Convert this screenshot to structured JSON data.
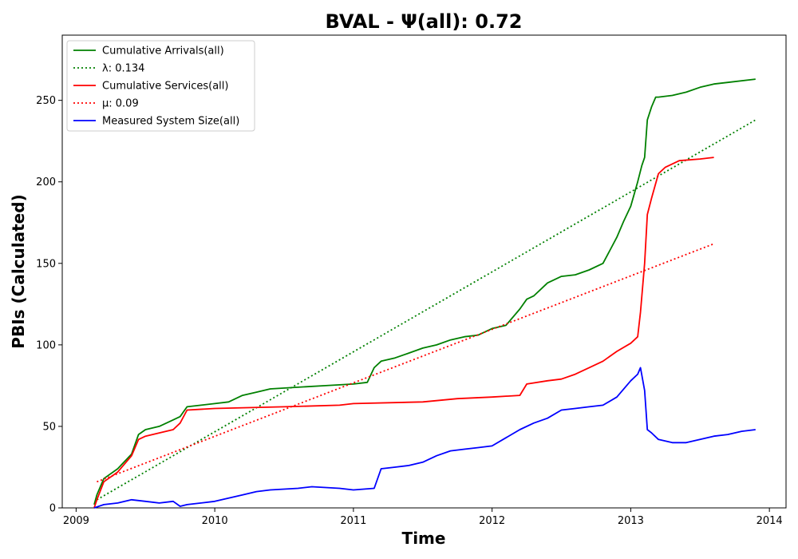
{
  "chart_data": {
    "type": "line",
    "title": "BVAL -  Ψ(all): 0.72",
    "xlabel": "Time",
    "ylabel": "PBIs (Calculated)",
    "xlim": [
      2008.9,
      2014.12
    ],
    "ylim": [
      0,
      290
    ],
    "x_ticks": [
      2009,
      2010,
      2011,
      2012,
      2013,
      2014
    ],
    "y_ticks": [
      0,
      50,
      100,
      150,
      200,
      250
    ],
    "grid": false,
    "legend_position": "top-left",
    "series": [
      {
        "name": "Cumulative Arrivals(all)",
        "color": "#008000",
        "style": "solid",
        "x": [
          2009.13,
          2009.15,
          2009.2,
          2009.3,
          2009.4,
          2009.45,
          2009.5,
          2009.6,
          2009.7,
          2009.75,
          2009.8,
          2009.9,
          2010.0,
          2010.1,
          2010.2,
          2010.3,
          2010.4,
          2010.6,
          2010.8,
          2011.0,
          2011.1,
          2011.15,
          2011.2,
          2011.3,
          2011.4,
          2011.5,
          2011.6,
          2011.7,
          2011.8,
          2011.9,
          2012.0,
          2012.1,
          2012.2,
          2012.25,
          2012.3,
          2012.4,
          2012.5,
          2012.6,
          2012.7,
          2012.8,
          2012.85,
          2012.9,
          2012.95,
          2013.0,
          2013.05,
          2013.08,
          2013.1,
          2013.12,
          2013.15,
          2013.18,
          2013.2,
          2013.3,
          2013.4,
          2013.5,
          2013.6,
          2013.7,
          2013.9
        ],
        "y": [
          2,
          8,
          18,
          24,
          33,
          45,
          48,
          50,
          54,
          56,
          62,
          63,
          64,
          65,
          69,
          71,
          73,
          74,
          75,
          76,
          77,
          86,
          90,
          92,
          95,
          98,
          100,
          103,
          105,
          106,
          110,
          112,
          122,
          128,
          130,
          138,
          142,
          143,
          146,
          150,
          158,
          166,
          176,
          185,
          200,
          210,
          215,
          238,
          246,
          252,
          252,
          253,
          255,
          258,
          260,
          261,
          263
        ]
      },
      {
        "name": "λ: 0.134",
        "color": "#008000",
        "style": "dotted",
        "x": [
          2009.15,
          2013.9
        ],
        "y": [
          5,
          238
        ]
      },
      {
        "name": "Cumulative Services(all)",
        "color": "#ff0000",
        "style": "solid",
        "x": [
          2009.13,
          2009.15,
          2009.2,
          2009.3,
          2009.4,
          2009.45,
          2009.5,
          2009.6,
          2009.7,
          2009.75,
          2009.8,
          2010.0,
          2010.5,
          2010.9,
          2011.0,
          2011.5,
          2011.75,
          2012.0,
          2012.2,
          2012.25,
          2012.4,
          2012.5,
          2012.6,
          2012.7,
          2012.8,
          2012.9,
          2013.0,
          2013.05,
          2013.07,
          2013.1,
          2013.12,
          2013.15,
          2013.2,
          2013.25,
          2013.3,
          2013.35,
          2013.5,
          2013.6
        ],
        "y": [
          0,
          5,
          16,
          22,
          32,
          42,
          44,
          46,
          48,
          52,
          60,
          61,
          62,
          63,
          64,
          65,
          67,
          68,
          69,
          76,
          78,
          79,
          82,
          86,
          90,
          96,
          101,
          105,
          120,
          150,
          180,
          190,
          205,
          209,
          211,
          213,
          214,
          215
        ]
      },
      {
        "name": "μ: 0.09",
        "color": "#ff0000",
        "style": "dotted",
        "x": [
          2009.15,
          2013.6
        ],
        "y": [
          16,
          162
        ]
      },
      {
        "name": "Measured System Size(all)",
        "color": "#0000ff",
        "style": "solid",
        "x": [
          2009.13,
          2009.2,
          2009.3,
          2009.4,
          2009.5,
          2009.6,
          2009.7,
          2009.75,
          2009.8,
          2009.9,
          2010.0,
          2010.1,
          2010.2,
          2010.3,
          2010.4,
          2010.6,
          2010.7,
          2010.9,
          2011.0,
          2011.15,
          2011.2,
          2011.3,
          2011.4,
          2011.5,
          2011.6,
          2011.7,
          2011.8,
          2011.9,
          2012.0,
          2012.1,
          2012.2,
          2012.3,
          2012.4,
          2012.5,
          2012.6,
          2012.7,
          2012.8,
          2012.9,
          2013.0,
          2013.05,
          2013.07,
          2013.1,
          2013.12,
          2013.15,
          2013.2,
          2013.3,
          2013.4,
          2013.5,
          2013.6,
          2013.7,
          2013.8,
          2013.9
        ],
        "y": [
          0,
          2,
          3,
          5,
          4,
          3,
          4,
          1,
          2,
          3,
          4,
          6,
          8,
          10,
          11,
          12,
          13,
          12,
          11,
          12,
          24,
          25,
          26,
          28,
          32,
          35,
          36,
          37,
          38,
          43,
          48,
          52,
          55,
          60,
          61,
          62,
          63,
          68,
          78,
          82,
          86,
          72,
          48,
          46,
          42,
          40,
          40,
          42,
          44,
          45,
          47,
          48
        ]
      }
    ]
  }
}
